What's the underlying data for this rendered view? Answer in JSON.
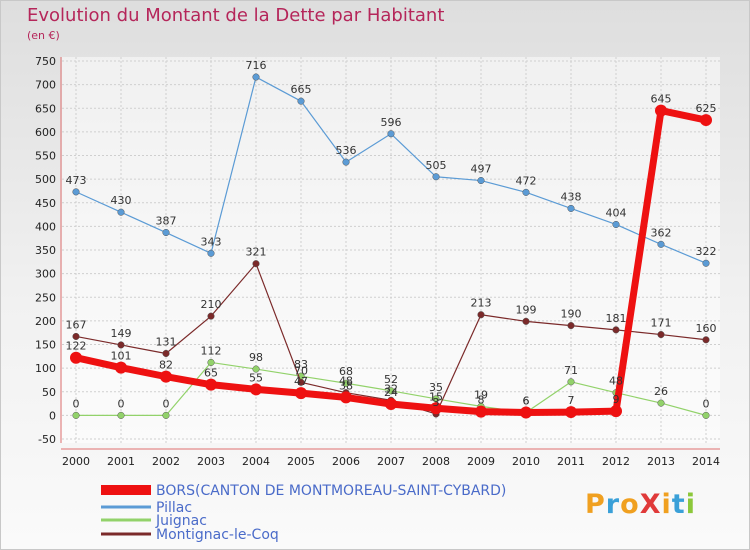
{
  "title": "Evolution du Montant de la Dette par Habitant",
  "subtitle": "(en €)",
  "logo_text": "ProXiti",
  "chart_data": {
    "type": "line",
    "title": "Evolution du Montant de la Dette par Habitant",
    "ylabel": "(en €)",
    "xlabel": "",
    "ylim": [
      -50,
      750
    ],
    "yticks": [
      -50,
      0,
      50,
      100,
      150,
      200,
      250,
      300,
      350,
      400,
      450,
      500,
      550,
      600,
      650,
      700,
      750
    ],
    "grid": true,
    "legend_position": "bottom-left",
    "x": [
      "2000",
      "2001",
      "2002",
      "2003",
      "2004",
      "2005",
      "2006",
      "2007",
      "2008",
      "2009",
      "2010",
      "2011",
      "2012",
      "2013",
      "2014"
    ],
    "series": [
      {
        "name": "BORS(CANTON DE MONTMOREAU-SAINT-CYBARD)",
        "color": "#ee1111",
        "values": [
          122,
          101,
          82,
          65,
          55,
          47,
          38,
          24,
          15,
          8,
          6,
          7,
          9,
          645,
          625
        ],
        "labels": [
          "122",
          "101",
          "82",
          "65",
          "55",
          "47",
          "38",
          "24",
          "15",
          "8",
          "6",
          "7",
          "9",
          "645",
          "625"
        ]
      },
      {
        "name": "Pillac",
        "color": "#5b9bd5",
        "values": [
          473,
          430,
          387,
          343,
          716,
          665,
          536,
          596,
          505,
          497,
          472,
          438,
          404,
          362,
          322
        ],
        "labels": [
          "473",
          "430",
          "387",
          "343",
          "716",
          "665",
          "536",
          "596",
          "505",
          "497",
          "472",
          "438",
          "404",
          "362",
          "322"
        ]
      },
      {
        "name": "Juignac",
        "color": "#92d26a",
        "values": [
          0,
          0,
          0,
          112,
          98,
          83,
          68,
          52,
          35,
          19,
          6,
          71,
          48,
          26,
          0
        ],
        "labels": [
          "0",
          "0",
          "0",
          "112",
          "98",
          "83",
          "68",
          "52",
          "35",
          "19",
          "6",
          "71",
          "48",
          "26",
          "0"
        ]
      },
      {
        "name": "Montignac-le-Coq",
        "color": "#7b2a2a",
        "values": [
          167,
          149,
          131,
          210,
          321,
          70,
          48,
          32,
          3,
          213,
          199,
          190,
          181,
          171,
          160
        ],
        "labels": [
          "167",
          "149",
          "131",
          "210",
          "321",
          "70",
          "48",
          "32",
          "3",
          "213",
          "199",
          "190",
          "181",
          "171",
          "160"
        ]
      }
    ]
  }
}
